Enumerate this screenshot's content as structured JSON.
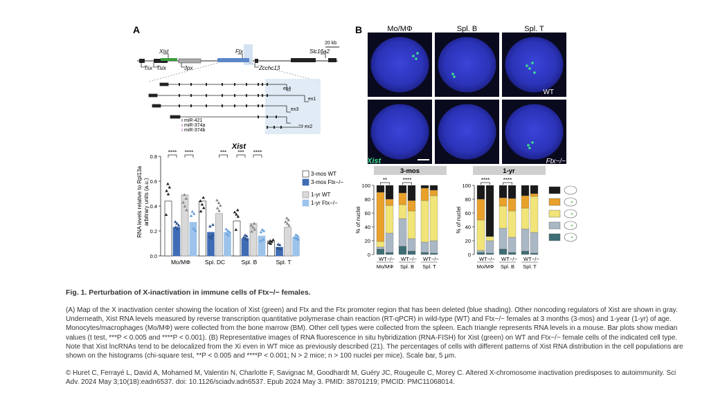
{
  "panelA": {
    "label": "A",
    "scale": "20 kb",
    "genes_top": [
      "Xist",
      "Ftx",
      "Slc16a2"
    ],
    "genes_bottom": [
      "Tsx",
      "Tsix",
      "Jpx",
      "Zcchc13"
    ],
    "exons": [
      "ex4",
      "ex1",
      "ex3",
      "ex2"
    ],
    "mirnas": [
      "miR-421",
      "miR-374a",
      "miR-374b"
    ]
  },
  "panelB": {
    "label": "B",
    "columns": [
      "Mo/MΦ",
      "Spl. B",
      "Spl. T"
    ],
    "row_labels": [
      "WT",
      "Ftx−/−"
    ],
    "probe_label": "Xist",
    "bar_groups": [
      "3-mos",
      "1-yr"
    ],
    "x_wt": "WT",
    "x_ko": "−/−",
    "ylabel": "% of nuclei"
  },
  "colors": {
    "xist_green": "#3a9e3a",
    "ftx_blue": "#5b87c9",
    "dark_blue": "#3f6db5",
    "light_blue": "#9dc3ea",
    "nucleus_blue": "#3340c8",
    "fish_green": "#40e090",
    "orange": "#e8a12b",
    "yellow": "#f1e478",
    "grey_blue": "#aab7c4",
    "teal": "#3e6e74",
    "black": "#1a1a1a"
  },
  "chart_data": [
    {
      "type": "bar",
      "title": "Xist",
      "ylabel": "RNA levels relative to Rpl13a",
      "ylabel2": "arbitrary units (a.u.)",
      "ylim": [
        0,
        0.8
      ],
      "yticks": [
        "0.0",
        "0.2",
        "0.4",
        "0.6",
        "0.8"
      ],
      "categories": [
        "Mo/MΦ",
        "Spl. DC",
        "Spl. B",
        "Spl. T"
      ],
      "series": [
        {
          "name": "3-mos WT",
          "values": [
            0.44,
            0.44,
            0.28,
            0.12
          ]
        },
        {
          "name": "3-mos Ftx−/−",
          "values": [
            0.23,
            0.19,
            0.14,
            0.07
          ]
        },
        {
          "name": "1-yr WT",
          "values": [
            0.49,
            0.34,
            0.26,
            0.23
          ]
        },
        {
          "name": "1-yr Ftx−/−",
          "values": [
            0.27,
            0.19,
            0.16,
            0.15
          ]
        }
      ],
      "significance": [
        "****",
        "****",
        "***",
        "***",
        "****"
      ],
      "legend_position": "right"
    },
    {
      "type": "bar",
      "title": "3-mos",
      "ylabel": "% of nuclei",
      "ylim": [
        0,
        100
      ],
      "yticks": [
        "0",
        "20",
        "40",
        "60",
        "80",
        "100"
      ],
      "categories": [
        "Mo/MΦ WT",
        "Mo/MΦ −/−",
        "Spl. B WT",
        "Spl. B −/−",
        "Spl. T WT",
        "Spl. T −/−"
      ],
      "series": [
        {
          "values": [
            8,
            3,
            12,
            5,
            3,
            2
          ]
        },
        {
          "values": [
            3,
            28,
            40,
            18,
            15,
            18
          ]
        },
        {
          "values": [
            8,
            40,
            20,
            40,
            60,
            65
          ]
        },
        {
          "values": [
            71,
            9,
            17,
            15,
            18,
            8
          ]
        },
        {
          "values": [
            10,
            20,
            11,
            22,
            4,
            7
          ]
        }
      ],
      "significance": [
        "**",
        "****"
      ]
    },
    {
      "type": "bar",
      "title": "1-yr",
      "ylabel": "% of nuclei",
      "ylim": [
        0,
        100
      ],
      "yticks": [
        "0",
        "20",
        "40",
        "60",
        "80",
        "100"
      ],
      "categories": [
        "Mo/MΦ WT",
        "Mo/MΦ −/−",
        "Spl. B WT",
        "Spl. B −/−",
        "Spl. T WT",
        "Spl. T −/−"
      ],
      "series": [
        {
          "values": [
            3,
            2,
            8,
            3,
            5,
            2
          ]
        },
        {
          "values": [
            3,
            18,
            30,
            22,
            32,
            30
          ]
        },
        {
          "values": [
            44,
            6,
            32,
            38,
            30,
            52
          ]
        },
        {
          "values": [
            30,
            0,
            12,
            18,
            18,
            4
          ]
        },
        {
          "values": [
            20,
            74,
            18,
            19,
            15,
            12
          ]
        }
      ],
      "significance": [
        "****",
        "****"
      ]
    }
  ],
  "caption": {
    "title": "Fig. 1. Perturbation of X-inactivation in immune cells of Ftx−/− females.",
    "body": "(A) Map of the X inactivation center showing the location of Xist (green) and Ftx and the Ftx promoter region that has been deleted (blue shading). Other noncoding regulators of Xist are shown in gray. Underneath, Xist RNA levels measured by reverse transcription quantitative polymerase chain reaction (RT-qPCR) in wild-type (WT) and Ftx−/− females at 3 months (3-mos) and 1-year (1-yr) of age. Monocytes/macrophages (Mo/MΦ) were collected from the bone marrow (BM). Other cell types were collected from the spleen. Each triangle represents RNA levels in a mouse. Bar plots show median values (t test, ***P < 0.005 and ****P < 0.001). (B) Representative images of RNA fluorescence in situ hybridization (RNA-FISH) for Xist (green) on WT and Ftx−/− female cells of the indicated cell type. Note that Xist lncRNAs tend to be delocalized from the Xi even in WT mice as previously described (21). The percentages of cells with different patterns of Xist RNA distribution in the cell populations are shown on the histograms (chi-square test, **P < 0.005 and ****P < 0.001; N > 2 mice; n > 100 nuclei per mice). Scale bar, 5 μm.",
    "citation": "© Huret C, Ferrayé L, David A, Mohamed M, Valentin N, Charlotte F, Savignac M, Goodhardt M, Guéry JC, Rougeulle C, Morey C. Altered X-chromosome inactivation predisposes to autoimmunity. Sci Adv. 2024 May 3;10(18):eadn6537. doi: 10.1126/sciadv.adn6537. Epub 2024 May 3. PMID: 38701219; PMCID: PMC11068014."
  }
}
